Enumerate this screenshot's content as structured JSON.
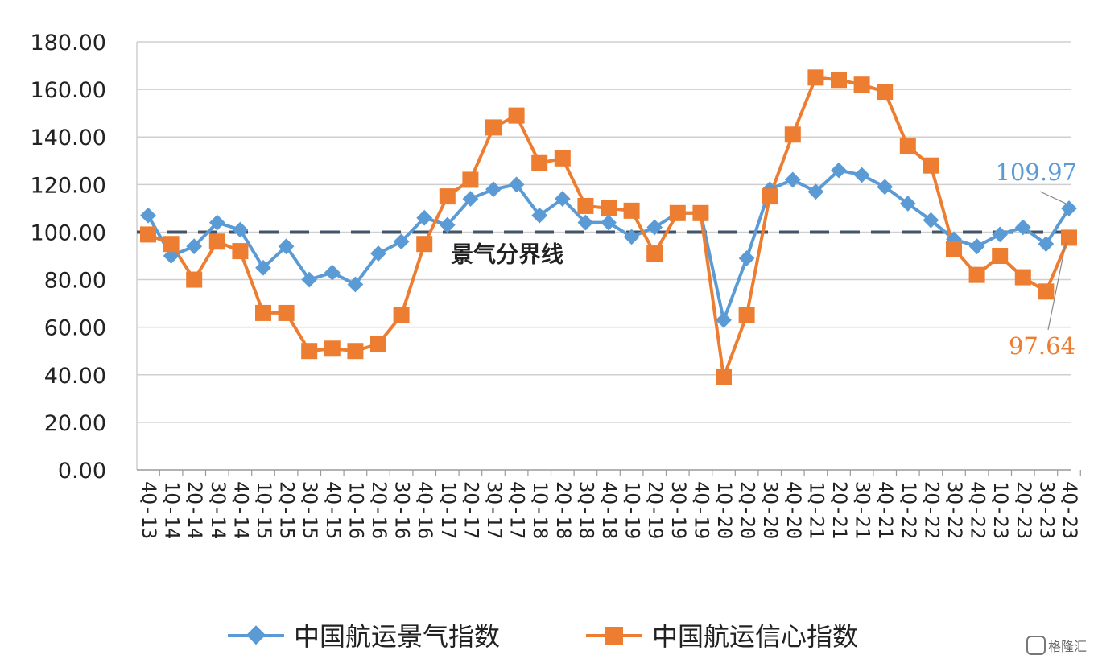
{
  "chart_data": {
    "type": "line",
    "categories": [
      "4Q-13",
      "1Q-14",
      "2Q-14",
      "3Q-14",
      "4Q-14",
      "1Q-15",
      "2Q-15",
      "3Q-15",
      "4Q-15",
      "1Q-16",
      "2Q-16",
      "3Q-16",
      "4Q-16",
      "1Q-17",
      "2Q-17",
      "3Q-17",
      "4Q-17",
      "1Q-18",
      "2Q-18",
      "3Q-18",
      "4Q-18",
      "1Q-19",
      "2Q-19",
      "3Q-19",
      "4Q-19",
      "1Q-20",
      "2Q-20",
      "3Q-20",
      "4Q-20",
      "1Q-21",
      "2Q-21",
      "3Q-21",
      "4Q-21",
      "1Q-22",
      "2Q-22",
      "3Q-22",
      "4Q-22",
      "1Q-23",
      "2Q-23",
      "3Q-23",
      "4Q-23"
    ],
    "series": [
      {
        "name": "中国航运景气指数",
        "color": "#5b9bd5",
        "marker": "diamond",
        "values": [
          107,
          90,
          94,
          104,
          101,
          85,
          94,
          80,
          83,
          78,
          91,
          96,
          106,
          103,
          114,
          118,
          120,
          107,
          114,
          104,
          104,
          98,
          102,
          108,
          108,
          63,
          89,
          118,
          122,
          117,
          126,
          124,
          119,
          112,
          105,
          97,
          94,
          99,
          102,
          95,
          109.97
        ]
      },
      {
        "name": "中国航运信心指数",
        "color": "#ed7d31",
        "marker": "square",
        "values": [
          99,
          95,
          80,
          96,
          92,
          66,
          66,
          50,
          51,
          50,
          53,
          65,
          95,
          115,
          122,
          144,
          149,
          129,
          131,
          111,
          110,
          109,
          91,
          108,
          108,
          39,
          65,
          115,
          141,
          165,
          164,
          162,
          159,
          136,
          128,
          93,
          82,
          90,
          81,
          75,
          97.64
        ]
      }
    ],
    "yticks": [
      "180.00",
      "160.00",
      "140.00",
      "120.00",
      "100.00",
      "80.00",
      "60.00",
      "40.00",
      "20.00",
      "0.00"
    ],
    "ylim": [
      0,
      180
    ],
    "grid": true,
    "reference_line": {
      "value": 100,
      "label": "景气分界线"
    },
    "annotations": [
      {
        "text": "109.97",
        "series": 0,
        "color": "#5b9bd5"
      },
      {
        "text": "97.64",
        "series": 1,
        "color": "#ed7d31"
      }
    ],
    "legend_position": "bottom"
  },
  "watermark": "格隆汇"
}
